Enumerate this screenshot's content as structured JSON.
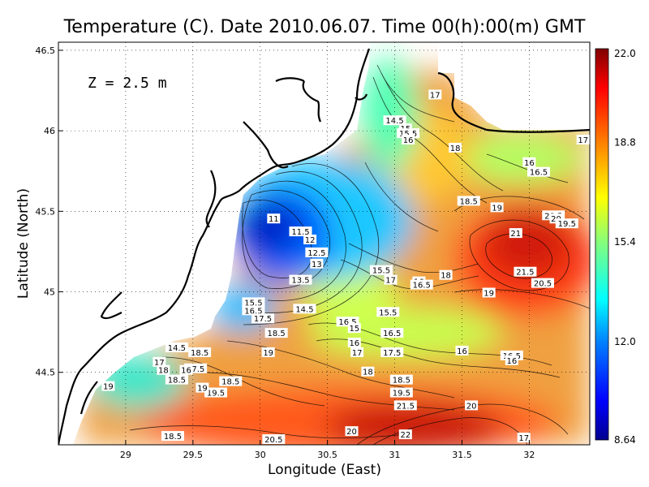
{
  "title": "Temperature (C). Date 2010.06.07. Time 00(h):00(m) GMT",
  "xlabel": "Longitude (East)",
  "ylabel": "Latitude (North)",
  "depth_label": "Z = 2.5 m",
  "x_ticks": [
    "29",
    "29.5",
    "30",
    "30.5",
    "31",
    "31.5",
    "32"
  ],
  "y_ticks": [
    "46.5",
    "46",
    "45.5",
    "45",
    "44.5"
  ],
  "colorbar": {
    "ticks": [
      "22.0",
      "18.8",
      "15.4",
      "12.0",
      "8.64"
    ],
    "min": 8.64,
    "max": 22.0
  },
  "colors": {
    "land": "#ffffff",
    "coast": "#000000",
    "scale": [
      "#00007f",
      "#0000ff",
      "#007fff",
      "#00ffff",
      "#7fff7f",
      "#ffff00",
      "#ff7f00",
      "#ff0000",
      "#7f0000"
    ]
  },
  "chart_data": {
    "type": "heatmap",
    "title": "Temperature (C). Date 2010.06.07. Time 00(h):00(m) GMT",
    "xlabel": "Longitude (East)",
    "ylabel": "Latitude (North)",
    "xlim": [
      28.5,
      32.45
    ],
    "ylim": [
      44.05,
      46.55
    ],
    "units": "C",
    "depth": "Z = 2.5 m",
    "grid": true,
    "value_range": [
      8.64,
      22.0
    ],
    "contour_labels": [
      {
        "lon": 30.1,
        "lat": 45.45,
        "value": "11"
      },
      {
        "lon": 30.3,
        "lat": 45.37,
        "value": "11.5"
      },
      {
        "lon": 30.37,
        "lat": 45.32,
        "value": "12"
      },
      {
        "lon": 30.42,
        "lat": 45.24,
        "value": "12.5"
      },
      {
        "lon": 30.42,
        "lat": 45.17,
        "value": "13"
      },
      {
        "lon": 30.3,
        "lat": 45.07,
        "value": "13.5"
      },
      {
        "lon": 31.0,
        "lat": 46.06,
        "value": "14.5"
      },
      {
        "lon": 31.08,
        "lat": 46.01,
        "value": "15"
      },
      {
        "lon": 31.1,
        "lat": 45.98,
        "value": "15.5"
      },
      {
        "lon": 31.1,
        "lat": 45.94,
        "value": "16"
      },
      {
        "lon": 31.3,
        "lat": 46.22,
        "value": "17"
      },
      {
        "lon": 31.45,
        "lat": 45.89,
        "value": "18"
      },
      {
        "lon": 31.55,
        "lat": 45.56,
        "value": "18.5"
      },
      {
        "lon": 31.76,
        "lat": 45.52,
        "value": "19"
      },
      {
        "lon": 32.18,
        "lat": 45.47,
        "value": "20.5"
      },
      {
        "lon": 31.9,
        "lat": 45.36,
        "value": "21"
      },
      {
        "lon": 31.97,
        "lat": 45.12,
        "value": "21.5"
      },
      {
        "lon": 32.1,
        "lat": 45.05,
        "value": "20.5"
      },
      {
        "lon": 31.7,
        "lat": 44.99,
        "value": "19"
      },
      {
        "lon": 31.38,
        "lat": 45.1,
        "value": "18"
      },
      {
        "lon": 30.9,
        "lat": 45.13,
        "value": "15.5"
      },
      {
        "lon": 30.97,
        "lat": 45.07,
        "value": "17"
      },
      {
        "lon": 31.18,
        "lat": 45.06,
        "value": "16"
      },
      {
        "lon": 31.2,
        "lat": 45.04,
        "value": "16.5"
      },
      {
        "lon": 30.95,
        "lat": 44.87,
        "value": "15.5"
      },
      {
        "lon": 30.65,
        "lat": 44.81,
        "value": "16.5"
      },
      {
        "lon": 30.7,
        "lat": 44.77,
        "value": "15"
      },
      {
        "lon": 30.7,
        "lat": 44.68,
        "value": "16"
      },
      {
        "lon": 30.72,
        "lat": 44.62,
        "value": "17"
      },
      {
        "lon": 30.98,
        "lat": 44.74,
        "value": "16.5"
      },
      {
        "lon": 30.98,
        "lat": 44.62,
        "value": "17.5"
      },
      {
        "lon": 31.5,
        "lat": 44.63,
        "value": "16"
      },
      {
        "lon": 31.87,
        "lat": 44.6,
        "value": "16.5"
      },
      {
        "lon": 31.87,
        "lat": 44.57,
        "value": "16"
      },
      {
        "lon": 30.8,
        "lat": 44.5,
        "value": "18"
      },
      {
        "lon": 31.05,
        "lat": 44.45,
        "value": "18.5"
      },
      {
        "lon": 31.05,
        "lat": 44.37,
        "value": "19.5"
      },
      {
        "lon": 31.08,
        "lat": 44.29,
        "value": "21.5"
      },
      {
        "lon": 31.57,
        "lat": 44.29,
        "value": "20"
      },
      {
        "lon": 31.08,
        "lat": 44.11,
        "value": "22"
      },
      {
        "lon": 30.68,
        "lat": 44.13,
        "value": "20"
      },
      {
        "lon": 30.1,
        "lat": 44.08,
        "value": "20.5"
      },
      {
        "lon": 30.78,
        "lat": 44.05,
        "value": "21.5"
      },
      {
        "lon": 29.78,
        "lat": 44.44,
        "value": "18.5"
      },
      {
        "lon": 29.67,
        "lat": 44.37,
        "value": "19.5"
      },
      {
        "lon": 29.57,
        "lat": 44.4,
        "value": "19"
      },
      {
        "lon": 29.52,
        "lat": 44.52,
        "value": "17.5"
      },
      {
        "lon": 29.55,
        "lat": 44.62,
        "value": "18.5"
      },
      {
        "lon": 29.45,
        "lat": 44.51,
        "value": "16"
      },
      {
        "lon": 29.38,
        "lat": 44.65,
        "value": "14.5"
      },
      {
        "lon": 29.25,
        "lat": 44.56,
        "value": "17"
      },
      {
        "lon": 29.28,
        "lat": 44.51,
        "value": "18"
      },
      {
        "lon": 29.38,
        "lat": 44.45,
        "value": "18.5"
      },
      {
        "lon": 28.87,
        "lat": 44.41,
        "value": "19"
      },
      {
        "lon": 29.35,
        "lat": 44.1,
        "value": "18.5"
      },
      {
        "lon": 28.75,
        "lat": 44.07,
        "value": "17.5"
      },
      {
        "lon": 29.95,
        "lat": 44.93,
        "value": "15.5"
      },
      {
        "lon": 29.95,
        "lat": 44.88,
        "value": "16.5"
      },
      {
        "lon": 30.02,
        "lat": 44.83,
        "value": "17.5"
      },
      {
        "lon": 30.12,
        "lat": 44.74,
        "value": "18.5"
      },
      {
        "lon": 30.06,
        "lat": 44.62,
        "value": "19"
      },
      {
        "lon": 30.33,
        "lat": 44.89,
        "value": "14.5"
      },
      {
        "lon": 32.2,
        "lat": 45.45,
        "value": "20"
      },
      {
        "lon": 32.28,
        "lat": 45.42,
        "value": "19.5"
      },
      {
        "lon": 32.0,
        "lat": 45.8,
        "value": "16"
      },
      {
        "lon": 32.07,
        "lat": 45.74,
        "value": "16.5"
      },
      {
        "lon": 32.4,
        "lat": 45.94,
        "value": "17"
      },
      {
        "lon": 31.96,
        "lat": 44.09,
        "value": "17"
      }
    ]
  }
}
